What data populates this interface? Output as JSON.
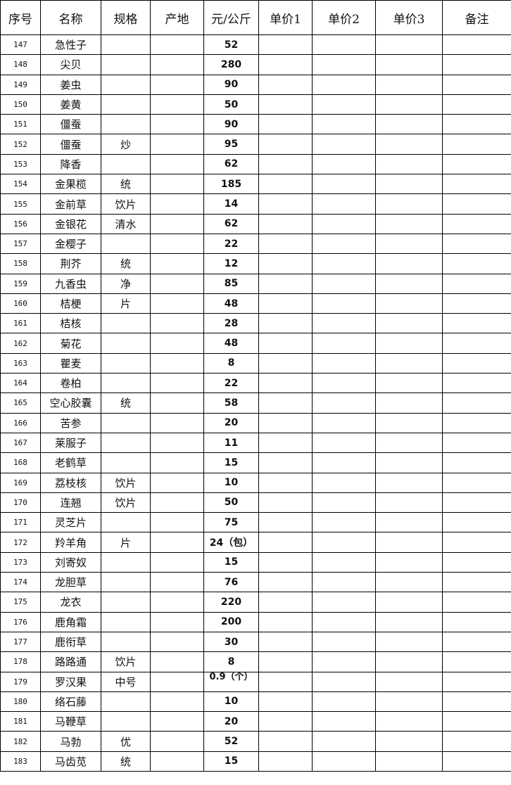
{
  "headers": [
    "序号",
    "名称",
    "规格",
    "产地",
    "元/公斤",
    "单价1",
    "单价2",
    "单价3",
    "备注"
  ],
  "rows": [
    {
      "no": "147",
      "name": "急性子",
      "spec": "",
      "price": "52"
    },
    {
      "no": "148",
      "name": "尖贝",
      "spec": "",
      "price": "280"
    },
    {
      "no": "149",
      "name": "姜虫",
      "spec": "",
      "price": "90"
    },
    {
      "no": "150",
      "name": "姜黄",
      "spec": "",
      "price": "50"
    },
    {
      "no": "151",
      "name": "僵蚕",
      "spec": "",
      "price": "90"
    },
    {
      "no": "152",
      "name": "僵蚕",
      "spec": "炒",
      "price": "95"
    },
    {
      "no": "153",
      "name": "降香",
      "spec": "",
      "price": "62"
    },
    {
      "no": "154",
      "name": "金果榄",
      "spec": "统",
      "price": "185"
    },
    {
      "no": "155",
      "name": "金前草",
      "spec": "饮片",
      "price": "14"
    },
    {
      "no": "156",
      "name": "金银花",
      "spec": "清水",
      "price": "62"
    },
    {
      "no": "157",
      "name": "金樱子",
      "spec": "",
      "price": "22"
    },
    {
      "no": "158",
      "name": "荆芥",
      "spec": "统",
      "price": "12"
    },
    {
      "no": "159",
      "name": "九香虫",
      "spec": "净",
      "price": "85"
    },
    {
      "no": "160",
      "name": "桔梗",
      "spec": "片",
      "price": "48"
    },
    {
      "no": "161",
      "name": "桔核",
      "spec": "",
      "price": "28"
    },
    {
      "no": "162",
      "name": "菊花",
      "spec": "",
      "price": "48"
    },
    {
      "no": "163",
      "name": "瞿麦",
      "spec": "",
      "price": "8"
    },
    {
      "no": "164",
      "name": "卷柏",
      "spec": "",
      "price": "22"
    },
    {
      "no": "165",
      "name": "空心胶囊",
      "spec": "统",
      "price": "58"
    },
    {
      "no": "166",
      "name": "苦参",
      "spec": "",
      "price": "20"
    },
    {
      "no": "167",
      "name": "莱服子",
      "spec": "",
      "price": "11"
    },
    {
      "no": "168",
      "name": "老鹤草",
      "spec": "",
      "price": "15"
    },
    {
      "no": "169",
      "name": "荔枝核",
      "spec": "饮片",
      "price": "10"
    },
    {
      "no": "170",
      "name": "连翘",
      "spec": "饮片",
      "price": "50"
    },
    {
      "no": "171",
      "name": "灵芝片",
      "spec": "",
      "price": "75"
    },
    {
      "no": "172",
      "name": "羚羊角",
      "spec": "片",
      "price": "24（包）"
    },
    {
      "no": "173",
      "name": "刘寄奴",
      "spec": "",
      "price": "15"
    },
    {
      "no": "174",
      "name": "龙胆草",
      "spec": "",
      "price": "76"
    },
    {
      "no": "175",
      "name": "龙衣",
      "spec": "",
      "price": "220"
    },
    {
      "no": "176",
      "name": "鹿角霜",
      "spec": "",
      "price": "200"
    },
    {
      "no": "177",
      "name": "鹿衔草",
      "spec": "",
      "price": "30"
    },
    {
      "no": "178",
      "name": "路路通",
      "spec": "饮片",
      "price": "8"
    },
    {
      "no": "179",
      "name": "罗汉果",
      "spec": "中号",
      "price": "0.9（个）"
    },
    {
      "no": "180",
      "name": "络石藤",
      "spec": "",
      "price": "10"
    },
    {
      "no": "181",
      "name": "马鞭草",
      "spec": "",
      "price": "20"
    },
    {
      "no": "182",
      "name": "马勃",
      "spec": "优",
      "price": "52"
    },
    {
      "no": "183",
      "name": "马齿苋",
      "spec": "统",
      "price": "15"
    }
  ]
}
